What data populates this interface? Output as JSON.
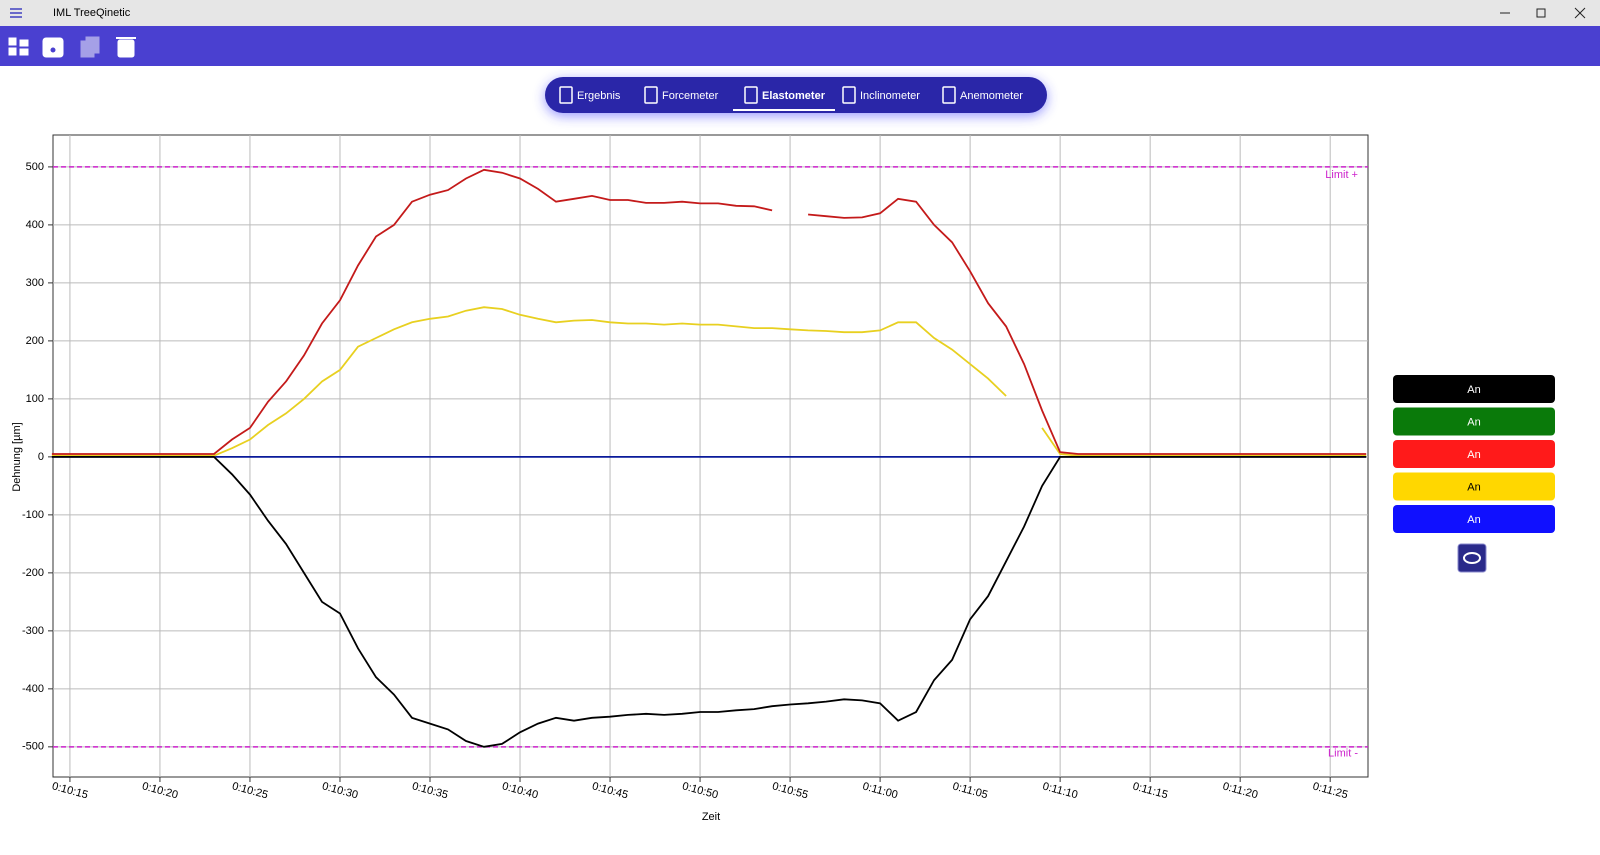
{
  "app": {
    "title": "IML TreeQinetic"
  },
  "tabs": [
    {
      "label": "Ergebnis"
    },
    {
      "label": "Forcemeter"
    },
    {
      "label": "Elastometer",
      "active": true
    },
    {
      "label": "Inclinometer"
    },
    {
      "label": "Anemometer"
    }
  ],
  "toggles": [
    {
      "label": "An",
      "color": "#000000",
      "text_color": "#ffffff"
    },
    {
      "label": "An",
      "color": "#0a7a0a",
      "text_color": "#ffffff"
    },
    {
      "label": "An",
      "color": "#ff1a1a",
      "text_color": "#ffffff"
    },
    {
      "label": "An",
      "color": "#ffd700",
      "text_color": "#000000"
    },
    {
      "label": "An",
      "color": "#1010ff",
      "text_color": "#ffffff"
    }
  ],
  "chart_data": {
    "type": "line",
    "x_label": "Zeit",
    "y_label": "Dehnung [µm]",
    "x": [
      614,
      615,
      616,
      617,
      618,
      619,
      620,
      621,
      622,
      623,
      624,
      625,
      626,
      627,
      628,
      629,
      630,
      631,
      632,
      633,
      634,
      635,
      636,
      637,
      638,
      639,
      640,
      641,
      642,
      643,
      644,
      645,
      646,
      647,
      648,
      649,
      650,
      651,
      652,
      653,
      654,
      655,
      656,
      657,
      658,
      659,
      660,
      661,
      662,
      663,
      664,
      665,
      666,
      667,
      668,
      669,
      670,
      671,
      672,
      673,
      674,
      675,
      676,
      677,
      678,
      679,
      680,
      681,
      682,
      683,
      684,
      685,
      686,
      687
    ],
    "series": [
      {
        "color": "#0a1a9a",
        "values": [
          0,
          0,
          0,
          0,
          0,
          0,
          0,
          0,
          0,
          0,
          0,
          0,
          0,
          0,
          0,
          0,
          0,
          0,
          0,
          0,
          0,
          0,
          0,
          0,
          0,
          0,
          0,
          0,
          0,
          0,
          0,
          0,
          0,
          0,
          0,
          0,
          0,
          0,
          0,
          0,
          0,
          0,
          0,
          0,
          0,
          0,
          0,
          0,
          0,
          0,
          0,
          0,
          0,
          0,
          0,
          0,
          0,
          0,
          0,
          0,
          0,
          0,
          0,
          0,
          0,
          0,
          0,
          0,
          0,
          0,
          0,
          0,
          0,
          0
        ]
      },
      {
        "color": "#e8d020",
        "values": [
          2,
          2,
          2,
          2,
          2,
          2,
          2,
          2,
          2,
          2,
          15,
          30,
          55,
          75,
          100,
          130,
          150,
          190,
          205,
          220,
          232,
          238,
          242,
          252,
          258,
          255,
          245,
          238,
          232,
          235,
          236,
          232,
          230,
          230,
          228,
          230,
          228,
          228,
          225,
          222,
          222,
          220,
          218,
          217,
          215,
          215,
          218,
          232,
          232,
          205,
          185,
          160,
          135,
          105,
          null,
          50,
          5,
          2,
          2,
          2,
          2,
          2,
          2,
          2,
          2,
          2,
          2,
          2,
          2,
          2,
          2,
          2,
          2,
          2
        ]
      },
      {
        "color": "#c41a1a",
        "values": [
          5,
          5,
          5,
          5,
          5,
          5,
          5,
          5,
          5,
          5,
          30,
          50,
          95,
          130,
          175,
          230,
          270,
          330,
          380,
          400,
          440,
          452,
          460,
          480,
          495,
          490,
          480,
          462,
          440,
          445,
          450,
          443,
          443,
          438,
          438,
          440,
          437,
          437,
          433,
          432,
          425,
          null,
          418,
          415,
          412,
          413,
          420,
          445,
          440,
          400,
          370,
          320,
          265,
          225,
          160,
          80,
          8,
          5,
          5,
          5,
          5,
          5,
          5,
          5,
          5,
          5,
          5,
          5,
          5,
          5,
          5,
          5,
          5,
          5
        ]
      },
      {
        "color": "#000000",
        "values": [
          0,
          0,
          0,
          0,
          0,
          0,
          0,
          0,
          0,
          0,
          -30,
          -65,
          -110,
          -150,
          -200,
          -250,
          -270,
          -330,
          -380,
          -410,
          -450,
          -460,
          -470,
          -490,
          -500,
          -495,
          -475,
          -460,
          -450,
          -455,
          -450,
          -448,
          -445,
          -443,
          -445,
          -443,
          -440,
          -440,
          -437,
          -435,
          -430,
          -427,
          -425,
          -422,
          -418,
          -420,
          -425,
          -455,
          -440,
          -385,
          -350,
          -280,
          -240,
          -180,
          -120,
          -50,
          0,
          0,
          0,
          0,
          0,
          0,
          0,
          0,
          0,
          0,
          0,
          0,
          0,
          0,
          0,
          0,
          0,
          0
        ]
      }
    ],
    "xlim": [
      614.06,
      687.1
    ],
    "ylim": [
      -552,
      555
    ],
    "xticks": [
      {
        "value": 615,
        "label": "0:10:15"
      },
      {
        "value": 620,
        "label": "0:10:20"
      },
      {
        "value": 625,
        "label": "0:10:25"
      },
      {
        "value": 630,
        "label": "0:10:30"
      },
      {
        "value": 635,
        "label": "0:10:35"
      },
      {
        "value": 640,
        "label": "0:10:40"
      },
      {
        "value": 645,
        "label": "0:10:45"
      },
      {
        "value": 650,
        "label": "0:10:50"
      },
      {
        "value": 655,
        "label": "0:10:55"
      },
      {
        "value": 660,
        "label": "0:11:00"
      },
      {
        "value": 665,
        "label": "0:11:05"
      },
      {
        "value": 670,
        "label": "0:11:10"
      },
      {
        "value": 675,
        "label": "0:11:15"
      },
      {
        "value": 680,
        "label": "0:11:20"
      },
      {
        "value": 685,
        "label": "0:11:25"
      }
    ],
    "yticks": [
      -500,
      -400,
      -300,
      -200,
      -100,
      0,
      100,
      200,
      300,
      400,
      500
    ],
    "grid": true,
    "annotations": [
      {
        "value": 500,
        "label": "Limit +",
        "color": "#cc22cc"
      },
      {
        "value": -500,
        "label": "Limit -",
        "color": "#cc22cc"
      }
    ]
  }
}
